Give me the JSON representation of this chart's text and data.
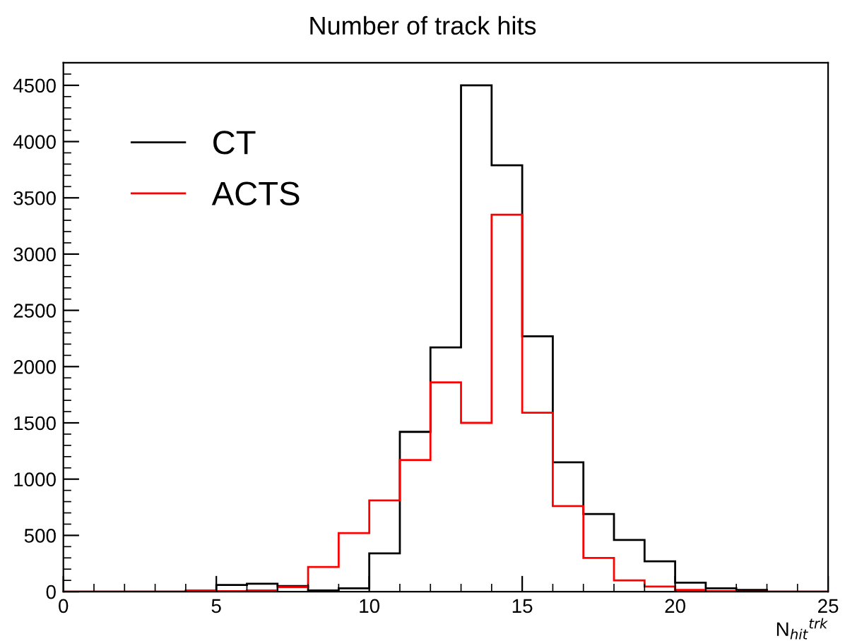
{
  "chart_data": {
    "type": "histogram",
    "title": "Number of track hits",
    "xlabel": "N$_{hit}$$^{trk}$",
    "bins": [
      0,
      1,
      2,
      3,
      4,
      5,
      6,
      7,
      8,
      9,
      10,
      11,
      12,
      13,
      14,
      15,
      16,
      17,
      18,
      19,
      20,
      21,
      22,
      23,
      24,
      25
    ],
    "series": [
      {
        "name": "CT",
        "color": "#000000",
        "values": [
          0,
          0,
          0,
          0,
          5,
          60,
          70,
          50,
          10,
          30,
          340,
          1420,
          2170,
          4500,
          3790,
          2270,
          1150,
          690,
          460,
          270,
          80,
          30,
          15,
          0,
          0
        ]
      },
      {
        "name": "ACTS",
        "color": "#ff0000",
        "values": [
          0,
          0,
          0,
          0,
          10,
          5,
          10,
          40,
          220,
          520,
          810,
          1170,
          1860,
          1500,
          3350,
          1590,
          760,
          300,
          100,
          45,
          15,
          5,
          0,
          0,
          0
        ]
      }
    ],
    "xlim": [
      0,
      25
    ],
    "ylim": [
      0,
      4700
    ],
    "xticks": [
      0,
      5,
      10,
      15,
      20,
      25
    ],
    "yticks": [
      0,
      500,
      1000,
      1500,
      2000,
      2500,
      3000,
      3500,
      4000,
      4500
    ],
    "legend": "top left",
    "grid": false
  }
}
